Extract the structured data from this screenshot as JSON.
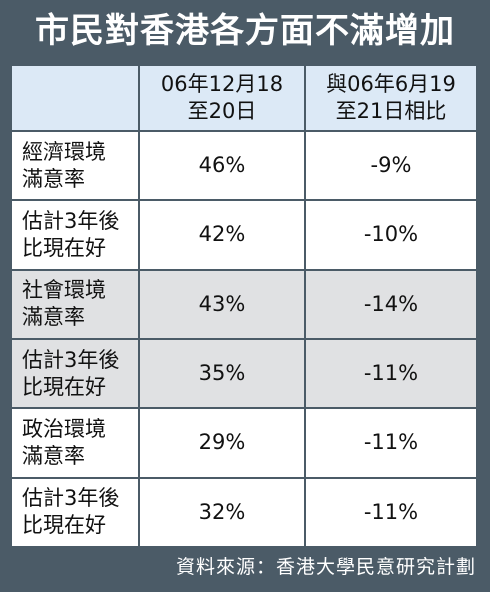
{
  "header": {
    "title": "市民對香港各方面不滿增加"
  },
  "table": {
    "columns": [
      [
        "06年12月18",
        "至20日"
      ],
      [
        "與06年6月19",
        "至21日相比"
      ]
    ],
    "rows": [
      {
        "label": [
          "經濟環境",
          "滿意率"
        ],
        "values": [
          "46%",
          "-9%"
        ]
      },
      {
        "label": [
          "估計3年後",
          "比現在好"
        ],
        "values": [
          "42%",
          "-10%"
        ]
      },
      {
        "label": [
          "社會環境",
          "滿意率"
        ],
        "values": [
          "43%",
          "-14%"
        ]
      },
      {
        "label": [
          "估計3年後",
          "比現在好"
        ],
        "values": [
          "35%",
          "-11%"
        ]
      },
      {
        "label": [
          "政治環境",
          "滿意率"
        ],
        "values": [
          "29%",
          "-11%"
        ]
      },
      {
        "label": [
          "估計3年後",
          "比現在好"
        ],
        "values": [
          "32%",
          "-11%"
        ]
      }
    ]
  },
  "footer": {
    "source": "資料來源：香港大學民意研究計劃"
  }
}
